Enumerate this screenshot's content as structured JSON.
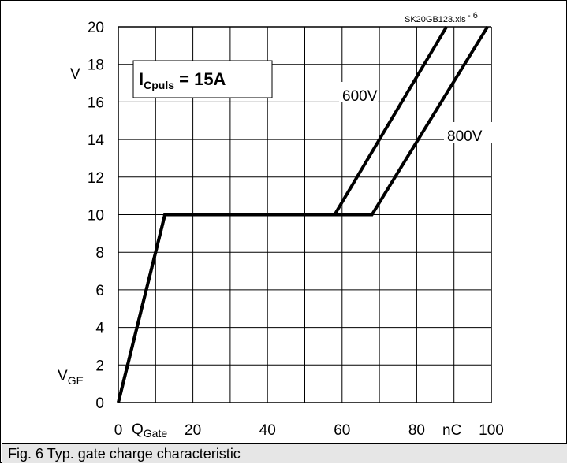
{
  "caption": "Fig. 6 Typ. gate charge characteristic",
  "chart_data": {
    "type": "line",
    "file_label": "SK20GB123.xls",
    "page_number": "6",
    "xlabel": "Q",
    "xlabel_sub": "Gate",
    "xunit": "nC",
    "ylabel": "V",
    "ylabel_sub": "GE",
    "yunit": "V",
    "xlim": [
      0,
      100
    ],
    "ylim": [
      0,
      20
    ],
    "xticks": [
      0,
      20,
      40,
      60,
      80,
      100
    ],
    "yticks": [
      0,
      2,
      4,
      6,
      8,
      10,
      12,
      14,
      16,
      18,
      20
    ],
    "grid": true,
    "annotation": {
      "main": "I",
      "sub": "Cpuls",
      "rest": " = 15A"
    },
    "series": [
      {
        "name": "600V",
        "x": [
          0,
          12.5,
          58,
          88
        ],
        "y": [
          0,
          10,
          10,
          20
        ]
      },
      {
        "name": "800V",
        "x": [
          0,
          12.5,
          68,
          99
        ],
        "y": [
          0,
          10,
          10,
          20
        ]
      }
    ],
    "colors": {
      "line": "#000000",
      "grid": "#000000",
      "caption_bg": "#e6e6e6"
    }
  }
}
